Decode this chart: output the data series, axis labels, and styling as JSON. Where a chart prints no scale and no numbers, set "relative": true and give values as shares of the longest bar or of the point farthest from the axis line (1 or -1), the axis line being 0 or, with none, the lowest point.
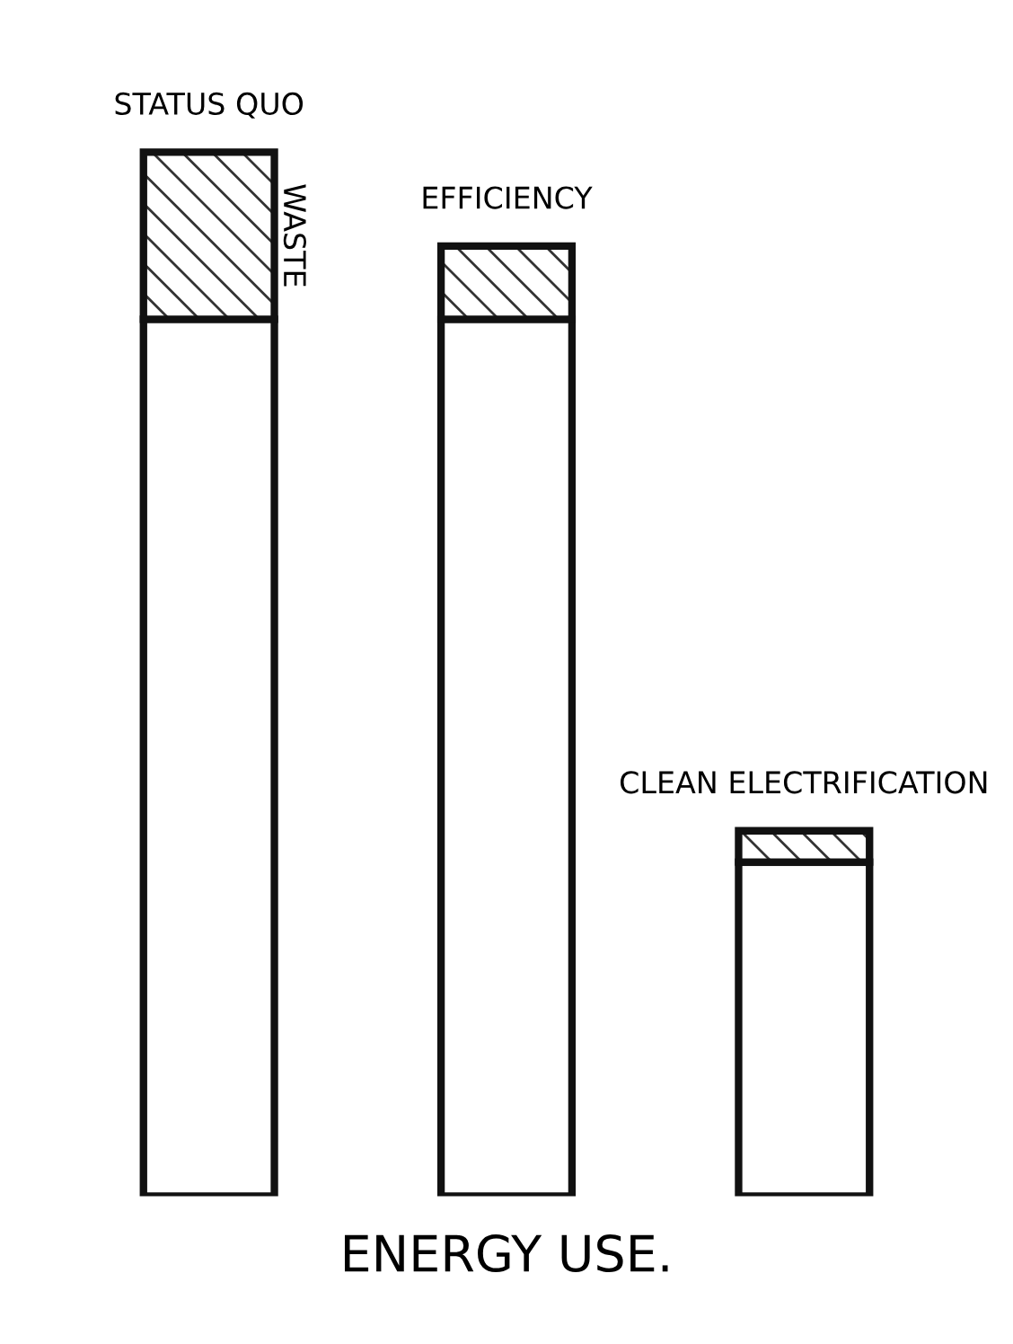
{
  "chart_data": {
    "type": "bar",
    "stacked": true,
    "relative": true,
    "xlabel": "ENERGY USE.",
    "categories": [
      "STATUS QUO",
      "EFFICIENCY",
      "CLEAN ELECTRIFICATION"
    ],
    "series": [
      {
        "color": "#ffffff",
        "values": [
          0.84,
          0.84,
          0.32
        ]
      },
      {
        "name": "WASTE",
        "color": "#333333",
        "values": [
          0.16,
          0.07,
          0.03
        ]
      }
    ],
    "legend": false
  }
}
